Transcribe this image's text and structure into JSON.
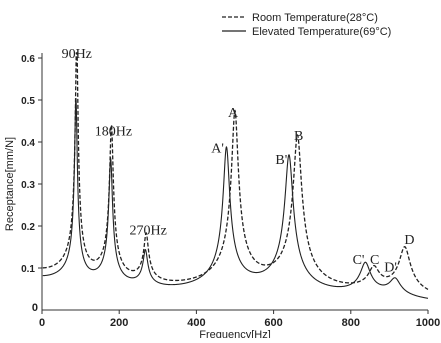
{
  "chart_data": {
    "type": "line",
    "xlabel": "Frequency[Hz]",
    "ylabel": "Receptance[mm/N]",
    "xlim": [
      0,
      1000
    ],
    "ylim": [
      0,
      0.6
    ],
    "x_ticks": [
      0,
      200,
      400,
      600,
      800,
      1000
    ],
    "y_ticks": [
      0.1,
      0.2,
      0.3,
      0.4,
      0.5,
      0.6
    ],
    "x_tick_labels": [
      "0",
      "200",
      "400",
      "600",
      "800",
      "1000"
    ],
    "y_tick_labels": [
      "0.1",
      "0.2",
      "0.3",
      "0.4",
      "0.5",
      "0.6"
    ],
    "grid": false,
    "legend_position": "top-right",
    "series": [
      {
        "name": "Room Temperature(28°C)",
        "style": "dashed",
        "color": "#222222",
        "peaks": [
          {
            "f": 90,
            "a": 0.58
          },
          {
            "f": 180,
            "a": 0.38
          },
          {
            "f": 270,
            "a": 0.12
          },
          {
            "f": 500,
            "a": 0.43
          },
          {
            "f": 662,
            "a": 0.38
          },
          {
            "f": 860,
            "a": 0.055
          },
          {
            "f": 940,
            "a": 0.12
          }
        ]
      },
      {
        "name": "Elevated Temperature(69°C)",
        "style": "solid",
        "color": "#222222",
        "peaks": [
          {
            "f": 88,
            "a": 0.45
          },
          {
            "f": 178,
            "a": 0.31
          },
          {
            "f": 268,
            "a": 0.09
          },
          {
            "f": 478,
            "a": 0.35
          },
          {
            "f": 640,
            "a": 0.34
          },
          {
            "f": 838,
            "a": 0.08
          },
          {
            "f": 915,
            "a": 0.045
          }
        ]
      }
    ],
    "annotations": [
      {
        "text": "90Hz",
        "x": 90,
        "y": 0.6,
        "font": "serif"
      },
      {
        "text": "180Hz",
        "x": 185,
        "y": 0.415,
        "font": "serif"
      },
      {
        "text": "270Hz",
        "x": 275,
        "y": 0.18,
        "font": "serif"
      },
      {
        "text": "A'",
        "x": 455,
        "y": 0.375,
        "font": "serif"
      },
      {
        "text": "A",
        "x": 495,
        "y": 0.46,
        "font": "serif"
      },
      {
        "text": "B'",
        "x": 620,
        "y": 0.348,
        "font": "serif"
      },
      {
        "text": "B",
        "x": 665,
        "y": 0.405,
        "font": "serif"
      },
      {
        "text": "C'",
        "x": 820,
        "y": 0.11,
        "font": "serif"
      },
      {
        "text": "C",
        "x": 862,
        "y": 0.11,
        "font": "serif"
      },
      {
        "text": "D'",
        "x": 903,
        "y": 0.092,
        "font": "serif"
      },
      {
        "text": "D",
        "x": 952,
        "y": 0.157,
        "font": "serif"
      }
    ]
  }
}
